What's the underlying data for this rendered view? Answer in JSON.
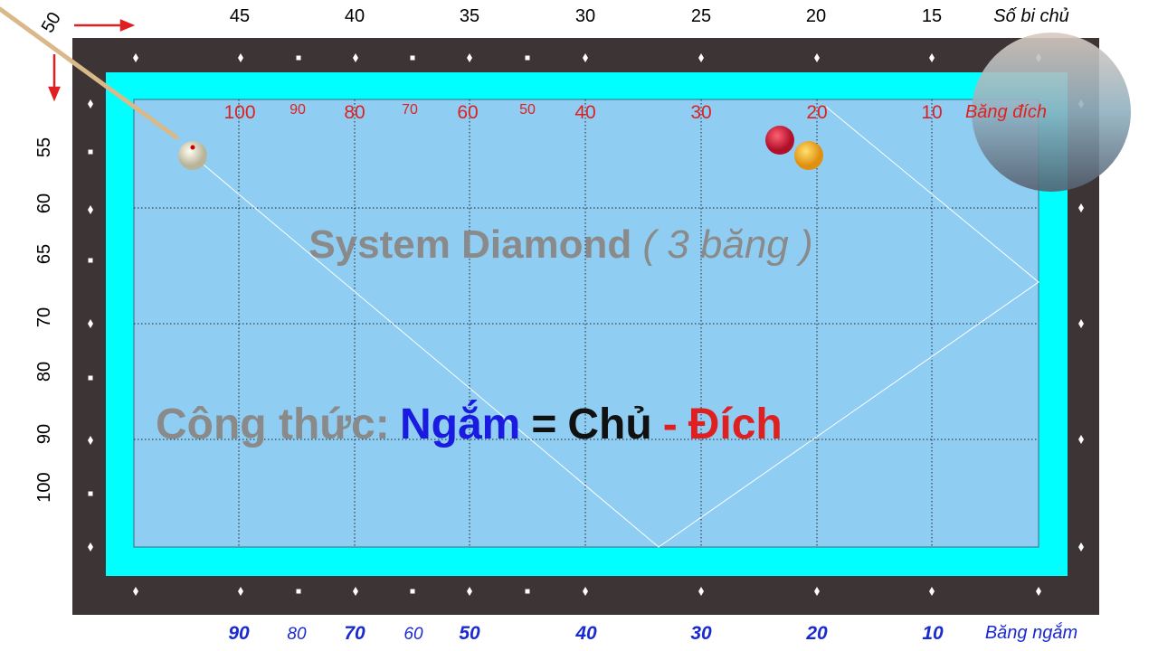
{
  "top_scale": {
    "labels": [
      50,
      45,
      40,
      35,
      30,
      25,
      20,
      15
    ],
    "caption": "Số bi chủ"
  },
  "target_scale": {
    "labels": [
      100,
      90,
      80,
      70,
      60,
      50,
      40,
      30,
      20,
      10
    ],
    "caption": "Băng đích"
  },
  "left_scale": {
    "labels": [
      55,
      60,
      65,
      70,
      80,
      90,
      100
    ]
  },
  "bottom_scale": {
    "labels": [
      90,
      80,
      70,
      60,
      50,
      40,
      30,
      20,
      10
    ],
    "caption": "Băng ngắm"
  },
  "title": {
    "main": "System Diamond",
    "sub": "( 3 băng )"
  },
  "formula": {
    "label": "Công thức:",
    "aim": "Ngắm",
    "equals": "=",
    "cue": "Chủ",
    "minus": "-",
    "target": "Đích"
  }
}
